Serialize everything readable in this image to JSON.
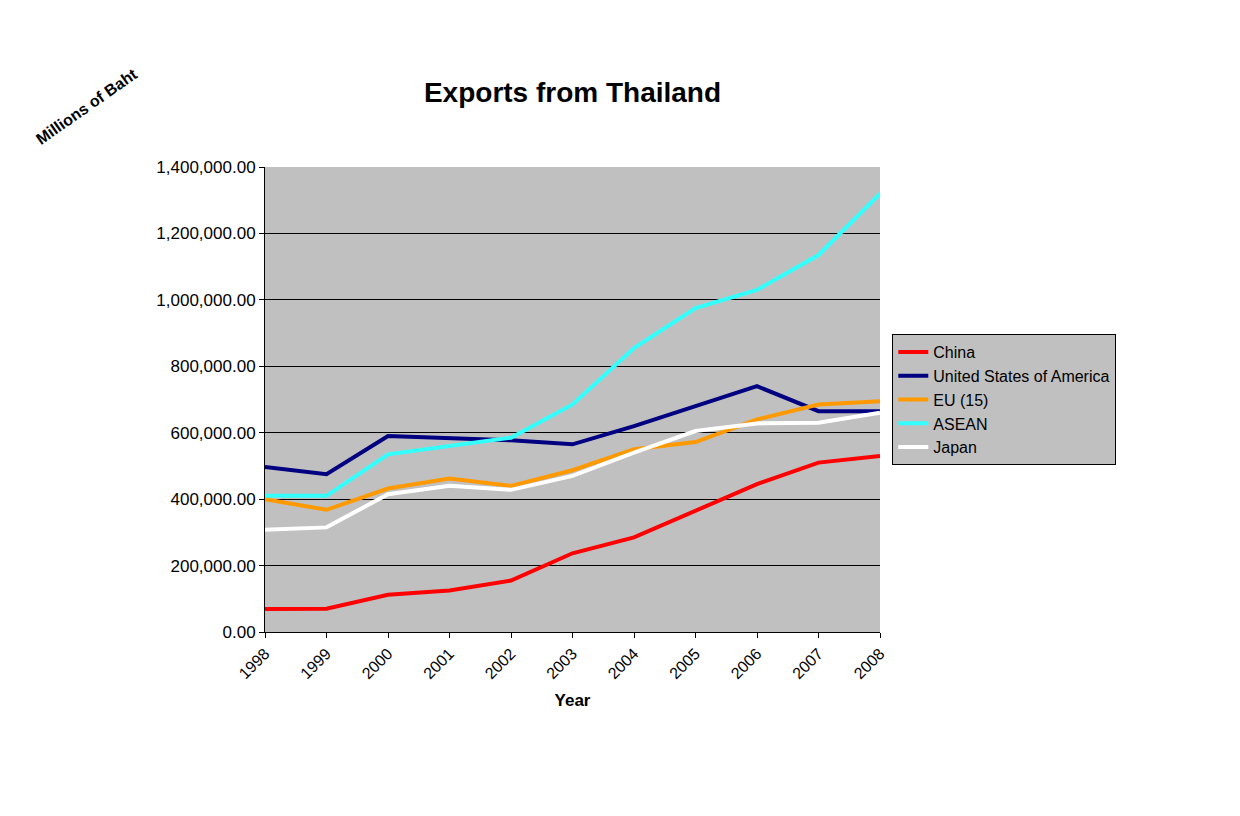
{
  "chart_data": {
    "type": "line",
    "title": "Exports from Thailand",
    "x_label": "Year",
    "y_label": "Millions of Baht",
    "categories": [
      "1998",
      "1999",
      "2000",
      "2001",
      "2002",
      "2003",
      "2004",
      "2005",
      "2006",
      "2007",
      "2008"
    ],
    "series": [
      {
        "name": "China",
        "color": "#ff0000",
        "values": [
          69000,
          70000,
          112000,
          125000,
          155000,
          237000,
          285000,
          365000,
          445000,
          510000,
          530000
        ]
      },
      {
        "name": "United States of America",
        "color": "#000080",
        "values": [
          497000,
          475000,
          590000,
          583000,
          577000,
          565000,
          620000,
          680000,
          740000,
          665000,
          665000
        ]
      },
      {
        "name": "EU (15)",
        "color": "#ff9900",
        "values": [
          400000,
          368000,
          432000,
          462000,
          440000,
          487000,
          550000,
          572000,
          640000,
          685000,
          695000
        ]
      },
      {
        "name": "ASEAN",
        "color": "#33ffff",
        "values": [
          410000,
          410000,
          535000,
          560000,
          585000,
          685000,
          855000,
          975000,
          1030000,
          1135000,
          1320000
        ]
      },
      {
        "name": "Japan",
        "color": "#ffffff",
        "values": [
          308000,
          315000,
          415000,
          440000,
          428000,
          470000,
          540000,
          605000,
          628000,
          630000,
          660000
        ]
      }
    ],
    "ylim": [
      0,
      1400000
    ],
    "yticks": [
      {
        "value": 0,
        "label": "0.00"
      },
      {
        "value": 200000,
        "label": "200,000.00"
      },
      {
        "value": 400000,
        "label": "400,000.00"
      },
      {
        "value": 600000,
        "label": "600,000.00"
      },
      {
        "value": 800000,
        "label": "800,000.00"
      },
      {
        "value": 1000000,
        "label": "1,000,000.00"
      },
      {
        "value": 1200000,
        "label": "1,200,000.00"
      },
      {
        "value": 1400000,
        "label": "1,400,000.00"
      }
    ],
    "grid": true,
    "legend": "right"
  }
}
